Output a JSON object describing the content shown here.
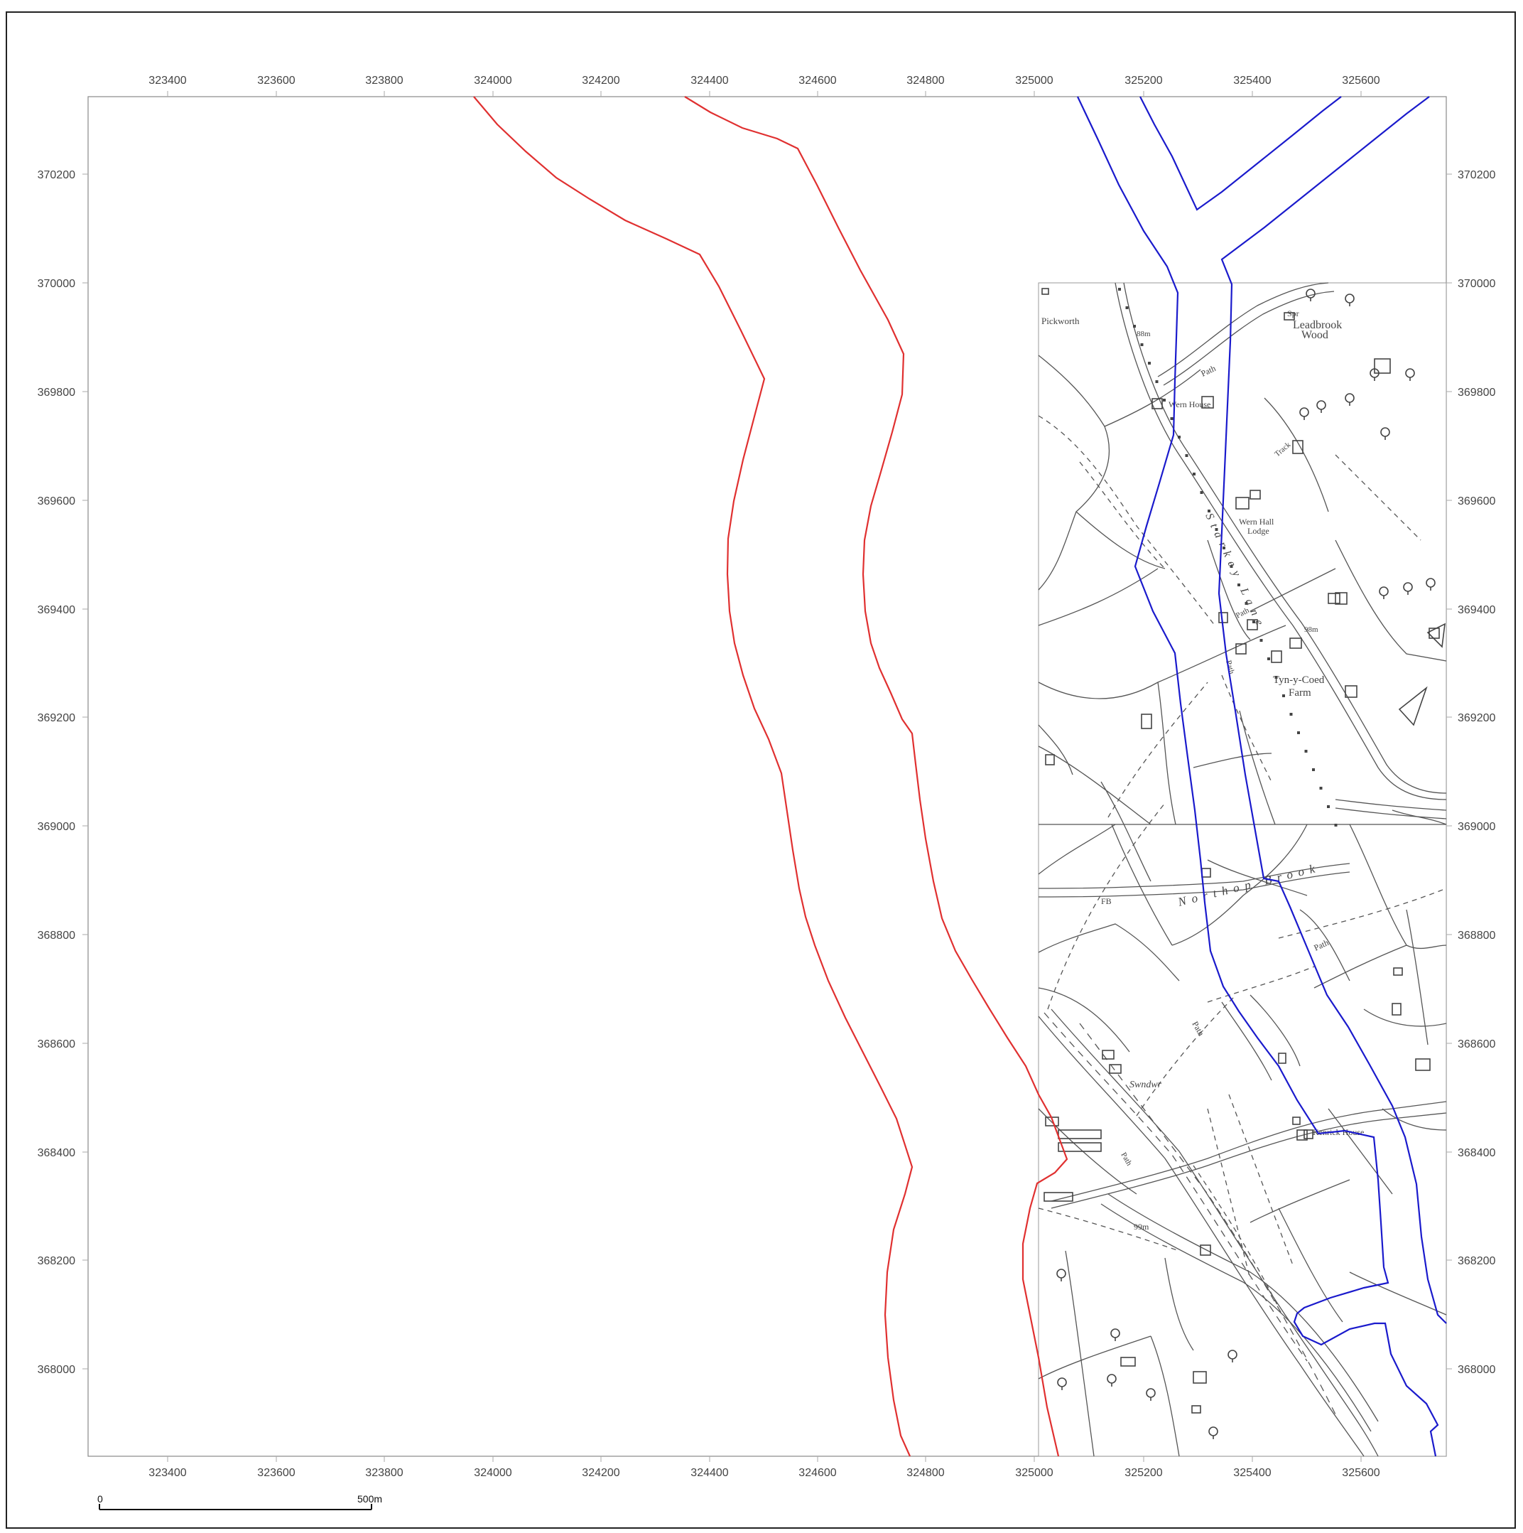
{
  "grid": {
    "x_ticks": [
      "323400",
      "323600",
      "323800",
      "324000",
      "324200",
      "324400",
      "324600",
      "324800",
      "325000",
      "325200",
      "325400",
      "325600"
    ],
    "y_ticks": [
      "370200",
      "370000",
      "369800",
      "369600",
      "369400",
      "369200",
      "369000",
      "368800",
      "368600",
      "368400",
      "368200",
      "368000"
    ]
  },
  "map_labels": [
    {
      "text": "Pickworth",
      "name": "label-pickworth"
    },
    {
      "text": "88m",
      "name": "label-spot-height-88"
    },
    {
      "text": "Spr",
      "name": "label-spring"
    },
    {
      "text": "Leadbrook",
      "name": "label-leadbrook"
    },
    {
      "text": "Wood",
      "name": "label-wood"
    },
    {
      "text": "Path",
      "name": "label-path-1"
    },
    {
      "text": "Wern House",
      "name": "label-wern-house"
    },
    {
      "text": "Track",
      "name": "label-track"
    },
    {
      "text": "Wern Hall",
      "name": "label-wern-hall"
    },
    {
      "text": "Lodge",
      "name": "label-lodge"
    },
    {
      "text": "Starkey Lane",
      "name": "label-starkey-lane"
    },
    {
      "text": "Path",
      "name": "label-path-2"
    },
    {
      "text": "98m",
      "name": "label-spot-height-98"
    },
    {
      "text": "Tyn-y-Coed",
      "name": "label-tyn-y-coed"
    },
    {
      "text": "Farm",
      "name": "label-farm"
    },
    {
      "text": "Path",
      "name": "label-path-3"
    },
    {
      "text": "Northop Brook",
      "name": "label-northop-brook"
    },
    {
      "text": "FB",
      "name": "label-footbridge"
    },
    {
      "text": "Path",
      "name": "label-path-4"
    },
    {
      "text": "Path",
      "name": "label-path-5"
    },
    {
      "text": "Swndwr",
      "name": "label-swndwr"
    },
    {
      "text": "Kenrick House",
      "name": "label-kenrick-house"
    },
    {
      "text": "Path",
      "name": "label-path-6"
    },
    {
      "text": "99m",
      "name": "label-spot-height-99"
    }
  ],
  "scale_bar": {
    "start_label": "0",
    "end_label": "500m"
  },
  "colors": {
    "red_boundary": "#e03030",
    "blue_boundary": "#1a1acc",
    "map_ink": "#555555",
    "frame": "#222222"
  }
}
